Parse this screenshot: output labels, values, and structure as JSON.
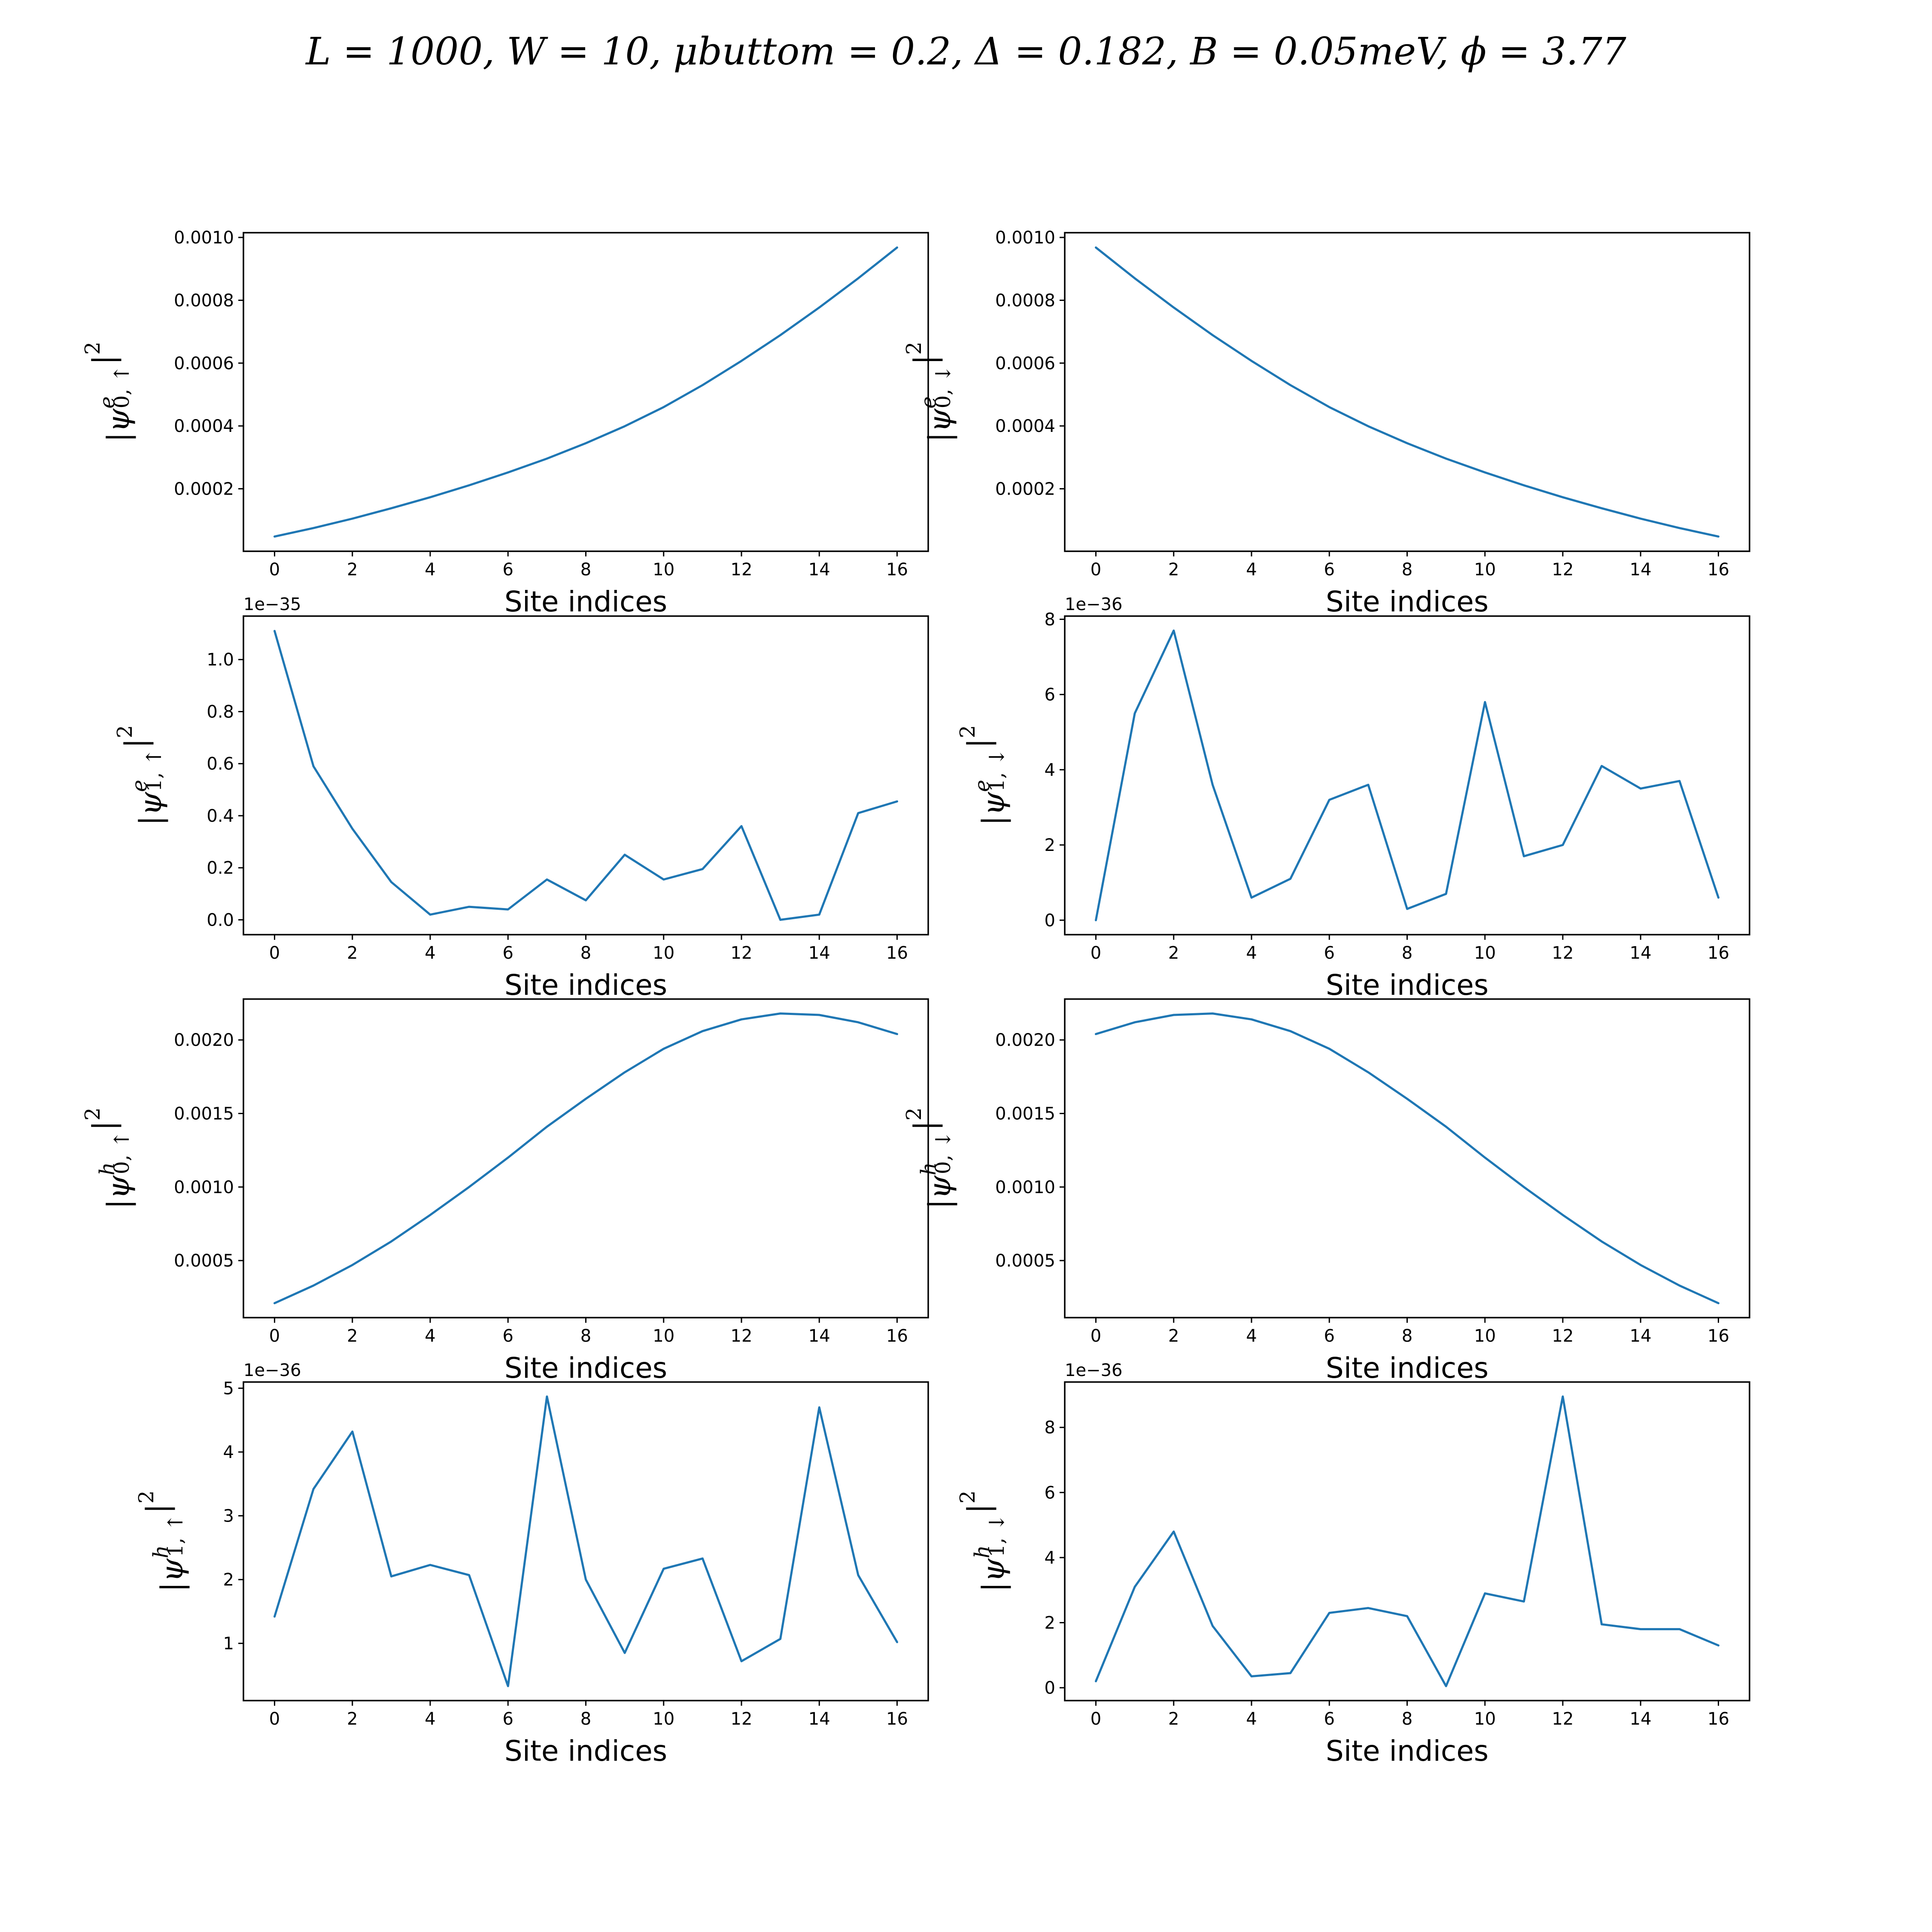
{
  "figure": {
    "title": "L = 1000, W = 10, μbuttom = 0.2, Δ = 0.182, B = 0.05meV, ϕ = 3.77",
    "line_color": "#1f77b4"
  },
  "chart_data": [
    {
      "type": "line",
      "xlabel": "Site indices",
      "ylabel": {
        "psi": "ψ",
        "sup": "e",
        "sub": "0, ↑"
      },
      "x": [
        0,
        1,
        2,
        3,
        4,
        5,
        6,
        7,
        8,
        9,
        10,
        11,
        12,
        13,
        14,
        15,
        16
      ],
      "values": [
        4.8e-05,
        7.5e-05,
        0.000105,
        0.000138,
        0.000173,
        0.000211,
        0.000252,
        0.000296,
        0.000345,
        0.000399,
        0.00046,
        0.00053,
        0.000607,
        0.000689,
        0.000777,
        0.00087,
        0.000968
      ],
      "ylim": [
        1.1e-06,
        0.0010151
      ],
      "yticks": [
        0.0002,
        0.0004,
        0.0006,
        0.0008,
        0.001
      ],
      "ytick_labels": [
        "0.0002",
        "0.0004",
        "0.0006",
        "0.0008",
        "0.0010"
      ],
      "xticks": [
        0,
        2,
        4,
        6,
        8,
        10,
        12,
        14,
        16
      ],
      "xtick_labels": [
        "0",
        "2",
        "4",
        "6",
        "8",
        "10",
        "12",
        "14",
        "16"
      ],
      "offset_text": ""
    },
    {
      "type": "line",
      "xlabel": "Site indices",
      "ylabel": {
        "psi": "ψ",
        "sup": "e",
        "sub": "0, ↓"
      },
      "x": [
        0,
        1,
        2,
        3,
        4,
        5,
        6,
        7,
        8,
        9,
        10,
        11,
        12,
        13,
        14,
        15,
        16
      ],
      "values": [
        0.000968,
        0.00087,
        0.000777,
        0.000689,
        0.000607,
        0.00053,
        0.00046,
        0.000399,
        0.000345,
        0.000296,
        0.000252,
        0.000211,
        0.000173,
        0.000138,
        0.000105,
        7.5e-05,
        4.8e-05
      ],
      "ylim": [
        1.1e-06,
        0.0010151
      ],
      "yticks": [
        0.0002,
        0.0004,
        0.0006,
        0.0008,
        0.001
      ],
      "ytick_labels": [
        "0.0002",
        "0.0004",
        "0.0006",
        "0.0008",
        "0.0010"
      ],
      "xticks": [
        0,
        2,
        4,
        6,
        8,
        10,
        12,
        14,
        16
      ],
      "xtick_labels": [
        "0",
        "2",
        "4",
        "6",
        "8",
        "10",
        "12",
        "14",
        "16"
      ],
      "offset_text": ""
    },
    {
      "type": "line",
      "xlabel": "Site indices",
      "ylabel": {
        "psi": "ψ",
        "sup": "e",
        "sub": "1, ↑"
      },
      "x": [
        0,
        1,
        2,
        3,
        4,
        5,
        6,
        7,
        8,
        9,
        10,
        11,
        12,
        13,
        14,
        15,
        16
      ],
      "values": [
        1.11,
        0.59,
        0.35,
        0.145,
        0.02,
        0.05,
        0.04,
        0.155,
        0.075,
        0.25,
        0.155,
        0.195,
        0.36,
        0.0,
        0.02,
        0.41,
        0.455
      ],
      "ylim": [
        -0.057,
        1.167
      ],
      "yticks": [
        0.0,
        0.2,
        0.4,
        0.6,
        0.8,
        1.0
      ],
      "ytick_labels": [
        "0.0",
        "0.2",
        "0.4",
        "0.6",
        "0.8",
        "1.0"
      ],
      "xticks": [
        0,
        2,
        4,
        6,
        8,
        10,
        12,
        14,
        16
      ],
      "xtick_labels": [
        "0",
        "2",
        "4",
        "6",
        "8",
        "10",
        "12",
        "14",
        "16"
      ],
      "offset_text": "1e−35"
    },
    {
      "type": "line",
      "xlabel": "Site indices",
      "ylabel": {
        "psi": "ψ",
        "sup": "e",
        "sub": "1, ↓"
      },
      "x": [
        0,
        1,
        2,
        3,
        4,
        5,
        6,
        7,
        8,
        9,
        10,
        11,
        12,
        13,
        14,
        15,
        16
      ],
      "values": [
        0.0,
        5.5,
        7.7,
        3.6,
        0.6,
        1.1,
        3.2,
        3.6,
        0.3,
        0.7,
        5.8,
        1.7,
        2.0,
        4.1,
        3.5,
        3.7,
        0.6
      ],
      "ylim": [
        -0.385,
        8.085
      ],
      "yticks": [
        0,
        2,
        4,
        6,
        8
      ],
      "ytick_labels": [
        "0",
        "2",
        "4",
        "6",
        "8"
      ],
      "xticks": [
        0,
        2,
        4,
        6,
        8,
        10,
        12,
        14,
        16
      ],
      "xtick_labels": [
        "0",
        "2",
        "4",
        "6",
        "8",
        "10",
        "12",
        "14",
        "16"
      ],
      "offset_text": "1e−36"
    },
    {
      "type": "line",
      "xlabel": "Site indices",
      "ylabel": {
        "psi": "ψ",
        "sup": "h",
        "sub": "0, ↑"
      },
      "x": [
        0,
        1,
        2,
        3,
        4,
        5,
        6,
        7,
        8,
        9,
        10,
        11,
        12,
        13,
        14,
        15,
        16
      ],
      "values": [
        0.00021,
        0.00033,
        0.00047,
        0.00063,
        0.00081,
        0.001,
        0.0012,
        0.00141,
        0.0016,
        0.00178,
        0.00194,
        0.00206,
        0.00214,
        0.00218,
        0.00217,
        0.00212,
        0.00204
      ],
      "ylim": [
        0.000112,
        0.002278
      ],
      "yticks": [
        0.0005,
        0.001,
        0.0015,
        0.002
      ],
      "ytick_labels": [
        "0.0005",
        "0.0010",
        "0.0015",
        "0.0020"
      ],
      "xticks": [
        0,
        2,
        4,
        6,
        8,
        10,
        12,
        14,
        16
      ],
      "xtick_labels": [
        "0",
        "2",
        "4",
        "6",
        "8",
        "10",
        "12",
        "14",
        "16"
      ],
      "offset_text": ""
    },
    {
      "type": "line",
      "xlabel": "Site indices",
      "ylabel": {
        "psi": "ψ",
        "sup": "h",
        "sub": "0, ↓"
      },
      "x": [
        0,
        1,
        2,
        3,
        4,
        5,
        6,
        7,
        8,
        9,
        10,
        11,
        12,
        13,
        14,
        15,
        16
      ],
      "values": [
        0.00204,
        0.00212,
        0.00217,
        0.00218,
        0.00214,
        0.00206,
        0.00194,
        0.00178,
        0.0016,
        0.00141,
        0.0012,
        0.001,
        0.00081,
        0.00063,
        0.00047,
        0.00033,
        0.00021
      ],
      "ylim": [
        0.000112,
        0.002278
      ],
      "yticks": [
        0.0005,
        0.001,
        0.0015,
        0.002
      ],
      "ytick_labels": [
        "0.0005",
        "0.0010",
        "0.0015",
        "0.0020"
      ],
      "xticks": [
        0,
        2,
        4,
        6,
        8,
        10,
        12,
        14,
        16
      ],
      "xtick_labels": [
        "0",
        "2",
        "4",
        "6",
        "8",
        "10",
        "12",
        "14",
        "16"
      ],
      "offset_text": ""
    },
    {
      "type": "line",
      "xlabel": "Site indices",
      "ylabel": {
        "psi": "ψ",
        "sup": "h",
        "sub": "1, ↑"
      },
      "x": [
        0,
        1,
        2,
        3,
        4,
        5,
        6,
        7,
        8,
        9,
        10,
        11,
        12,
        13,
        14,
        15,
        16
      ],
      "values": [
        1.42,
        3.42,
        4.32,
        2.05,
        2.23,
        2.07,
        0.33,
        4.87,
        2.0,
        0.85,
        2.17,
        2.33,
        0.72,
        1.07,
        4.7,
        2.07,
        1.02
      ],
      "ylim": [
        0.103,
        5.097
      ],
      "yticks": [
        1,
        2,
        3,
        4,
        5
      ],
      "ytick_labels": [
        "1",
        "2",
        "3",
        "4",
        "5"
      ],
      "xticks": [
        0,
        2,
        4,
        6,
        8,
        10,
        12,
        14,
        16
      ],
      "xtick_labels": [
        "0",
        "2",
        "4",
        "6",
        "8",
        "10",
        "12",
        "14",
        "16"
      ],
      "offset_text": "1e−36"
    },
    {
      "type": "line",
      "xlabel": "Site indices",
      "ylabel": {
        "psi": "ψ",
        "sup": "h",
        "sub": "1, ↓"
      },
      "x": [
        0,
        1,
        2,
        3,
        4,
        5,
        6,
        7,
        8,
        9,
        10,
        11,
        12,
        13,
        14,
        15,
        16
      ],
      "values": [
        0.2,
        3.1,
        4.8,
        1.9,
        0.35,
        0.45,
        2.3,
        2.45,
        2.2,
        0.05,
        2.9,
        2.65,
        8.95,
        1.95,
        1.8,
        1.8,
        1.3
      ],
      "ylim": [
        -0.395,
        9.395
      ],
      "yticks": [
        0,
        2,
        4,
        6,
        8
      ],
      "ytick_labels": [
        "0",
        "2",
        "4",
        "6",
        "8"
      ],
      "xticks": [
        0,
        2,
        4,
        6,
        8,
        10,
        12,
        14,
        16
      ],
      "xtick_labels": [
        "0",
        "2",
        "4",
        "6",
        "8",
        "10",
        "12",
        "14",
        "16"
      ],
      "offset_text": "1e−36"
    }
  ]
}
